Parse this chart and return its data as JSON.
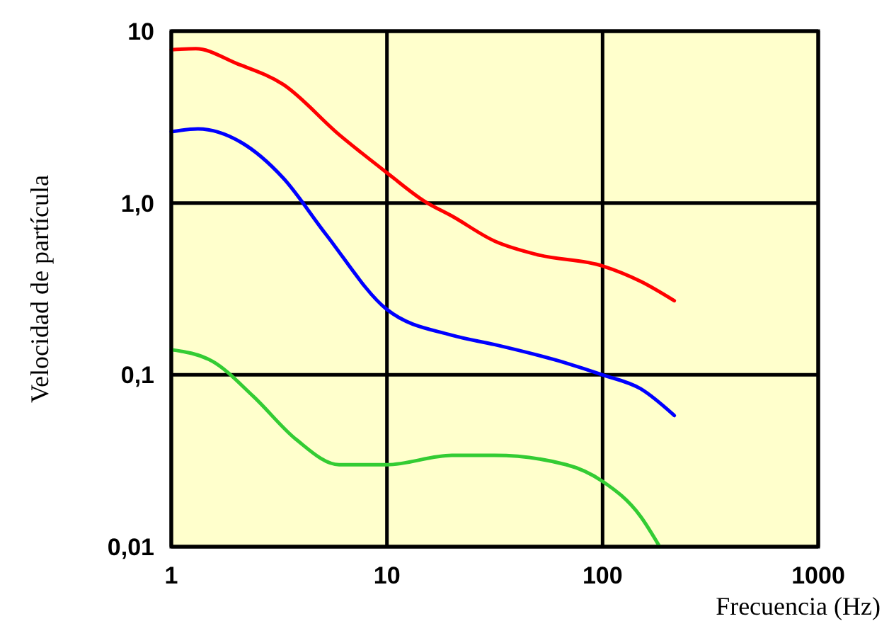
{
  "chart_data": {
    "type": "line",
    "xlabel": "Frecuencia (Hz)",
    "ylabel": "Velocidad de partícula",
    "log": "xy",
    "grid": true,
    "xlim": [
      1,
      1000
    ],
    "ylim": [
      0.01,
      10
    ],
    "xticks": [
      1,
      10,
      100,
      1000
    ],
    "yticks": [
      {
        "value": 0.01,
        "label": "0,01"
      },
      {
        "value": 0.1,
        "label": "0,1"
      },
      {
        "value": 1,
        "label": "1,0"
      },
      10
    ],
    "series": [
      {
        "color": "#ff0000",
        "x": [
          1,
          1.3,
          2,
          3.3,
          6,
          10,
          15,
          20,
          31.6,
          50,
          100,
          150,
          215
        ],
        "values": [
          7.8,
          7.9,
          6.5,
          4.9,
          2.5,
          1.5,
          1.02,
          0.84,
          0.6,
          0.5,
          0.43,
          0.35,
          0.27
        ]
      },
      {
        "color": "#0000ff",
        "x": [
          1,
          1.33,
          2.1,
          3.3,
          5.2,
          10,
          20,
          31.6,
          68,
          100,
          150,
          215
        ],
        "values": [
          2.6,
          2.7,
          2.26,
          1.4,
          0.66,
          0.24,
          0.17,
          0.15,
          0.117,
          0.1,
          0.083,
          0.058
        ]
      },
      {
        "color": "#33cc33",
        "x": [
          1,
          1.55,
          2.4,
          3.8,
          6,
          10,
          20,
          31.6,
          68,
          100,
          150,
          184
        ],
        "values": [
          0.14,
          0.12,
          0.075,
          0.042,
          0.03,
          0.03,
          0.034,
          0.034,
          0.03,
          0.024,
          0.015,
          0.01
        ]
      }
    ]
  }
}
